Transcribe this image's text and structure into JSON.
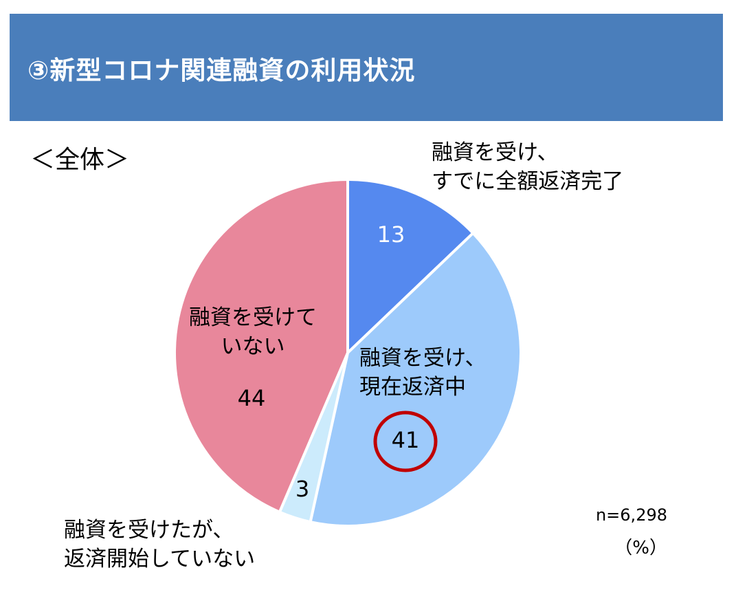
{
  "header": {
    "title": "③新型コロナ関連融資の利用状況",
    "background_color": "#4a7ebb"
  },
  "subtitle": "＜全体＞",
  "chart_data": {
    "type": "pie",
    "start_angle_deg": 0,
    "direction": "clockwise",
    "slices": [
      {
        "label_lines": [
          "融資を受け、",
          "すでに全額返済完了"
        ],
        "value": 13,
        "color": "#5589ef",
        "value_label_color": "#ffffff"
      },
      {
        "label_lines": [
          "融資を受け、",
          "現在返済中"
        ],
        "value": 41,
        "color": "#9dcafb",
        "value_label_color": "#000000",
        "highlighted": true,
        "highlight_color": "#c00000"
      },
      {
        "label_lines": [
          "融資を受けたが、",
          "返済開始していない"
        ],
        "value": 3,
        "color": "#ccebfc",
        "value_label_color": "#000000"
      },
      {
        "label_lines": [
          "融資を受けて",
          "いない"
        ],
        "value": 44,
        "color": "#e8879b",
        "value_label_color": "#000000"
      }
    ],
    "sample_size": "n=6,298",
    "unit": "（%）"
  }
}
